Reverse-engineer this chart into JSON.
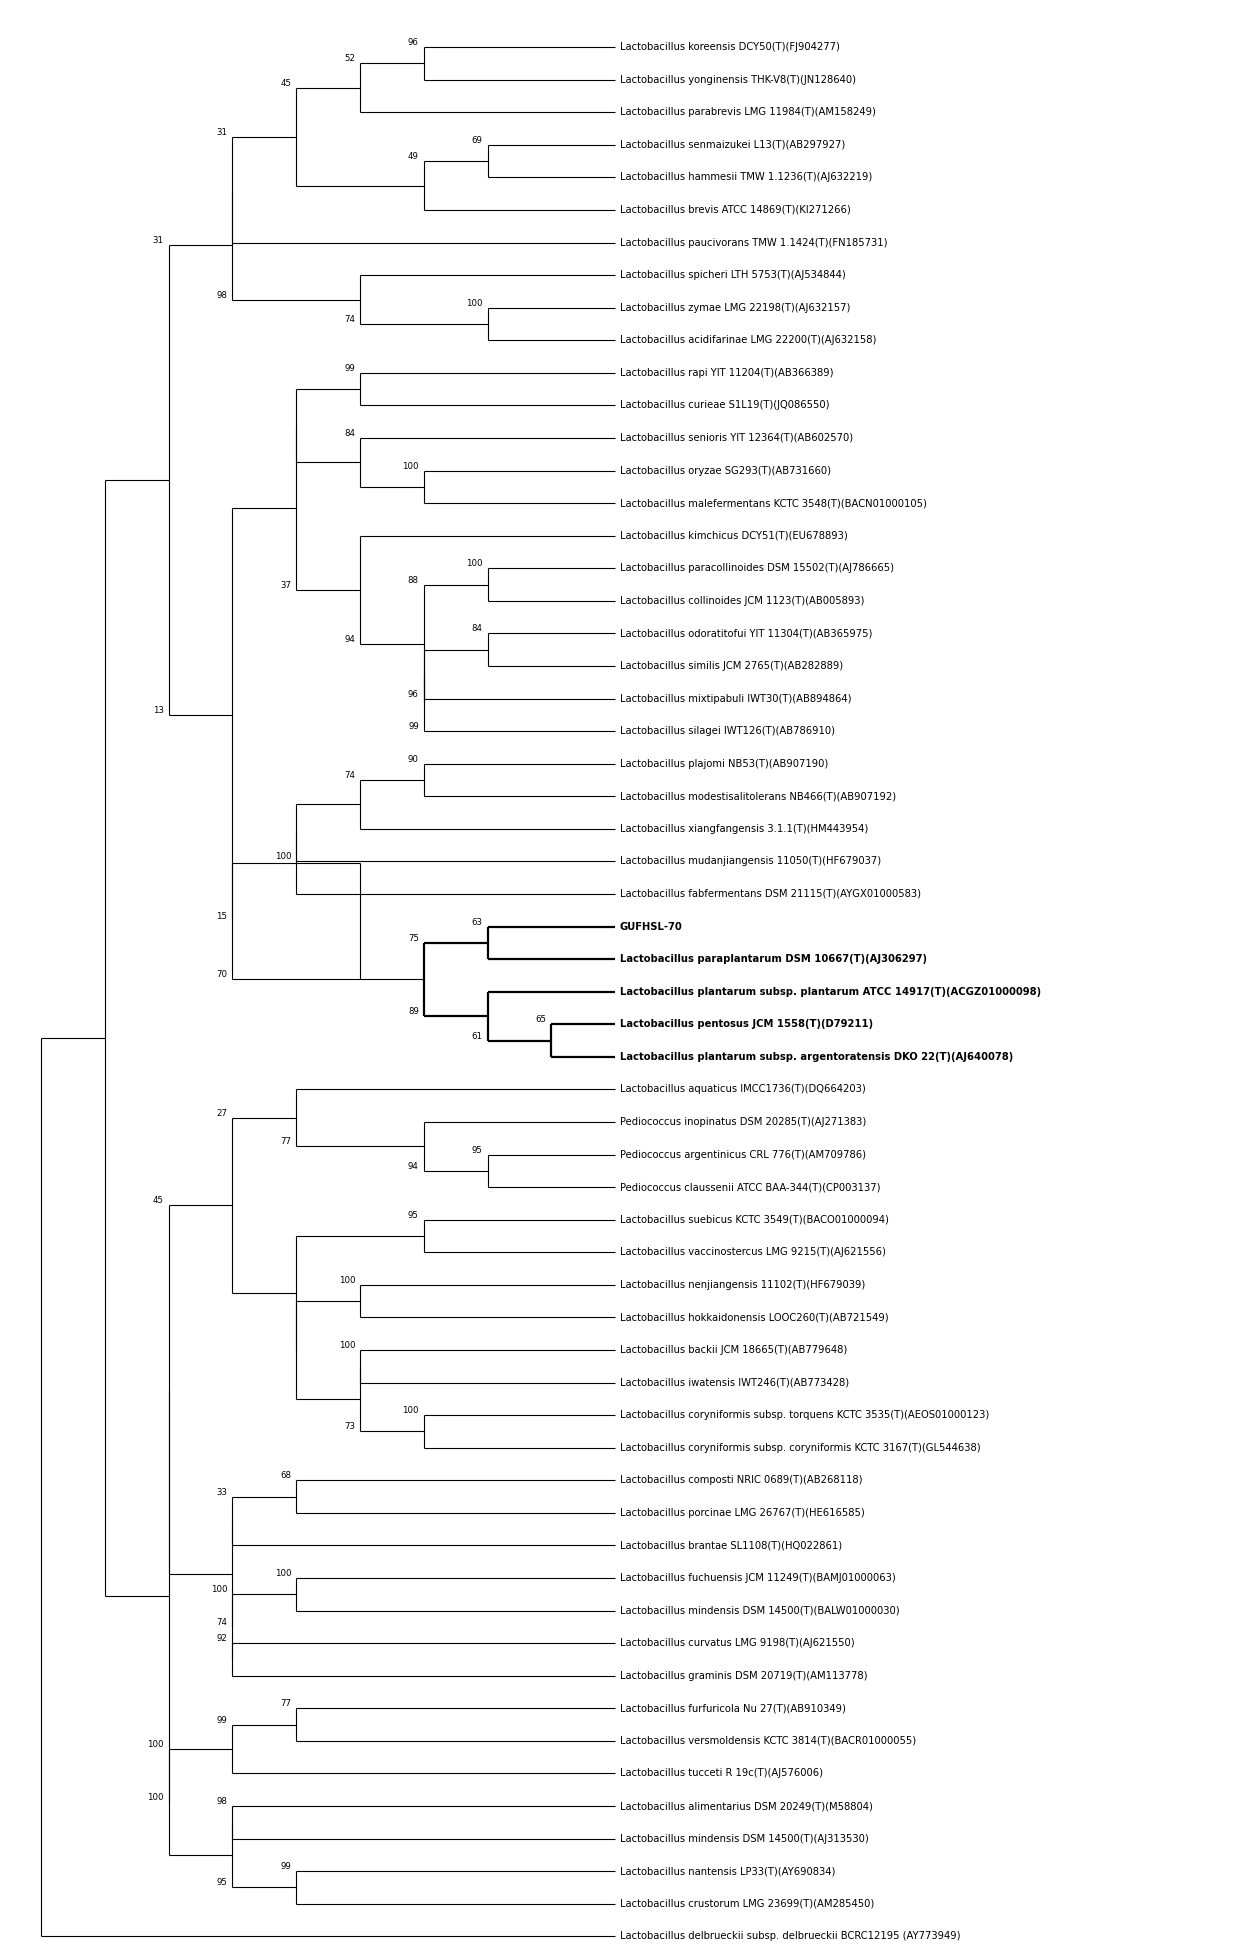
{
  "taxa": [
    "Lactobacillus koreensis DCY50(T)(FJ904277)",
    "Lactobacillus yonginensis THK-V8(T)(JN128640)",
    "Lactobacillus parabrevis LMG 11984(T)(AM158249)",
    "Lactobacillus senmaizukei L13(T)(AB297927)",
    "Lactobacillus hammesii TMW 1.1236(T)(AJ632219)",
    "Lactobacillus brevis ATCC 14869(T)(KI271266)",
    "Lactobacillus paucivorans TMW 1.1424(T)(FN185731)",
    "Lactobacillus spicheri LTH 5753(T)(AJ534844)",
    "Lactobacillus zymae LMG 22198(T)(AJ632157)",
    "Lactobacillus acidifarinae LMG 22200(T)(AJ632158)",
    "Lactobacillus rapi YIT 11204(T)(AB366389)",
    "Lactobacillus curieae S1L19(T)(JQ086550)",
    "Lactobacillus senioris YIT 12364(T)(AB602570)",
    "Lactobacillus oryzae SG293(T)(AB731660)",
    "Lactobacillus malefermentans KCTC 3548(T)(BACN01000105)",
    "Lactobacillus kimchicus DCY51(T)(EU678893)",
    "Lactobacillus paracollinoides DSM 15502(T)(AJ786665)",
    "Lactobacillus collinoides JCM 1123(T)(AB005893)",
    "Lactobacillus odoratitofui YIT 11304(T)(AB365975)",
    "Lactobacillus similis JCM 2765(T)(AB282889)",
    "Lactobacillus mixtipabuli IWT30(T)(AB894864)",
    "Lactobacillus silagei IWT126(T)(AB786910)",
    "Lactobacillus plajomi NB53(T)(AB907190)",
    "Lactobacillus modestisalitolerans NB466(T)(AB907192)",
    "Lactobacillus xiangfangensis 3.1.1(T)(HM443954)",
    "Lactobacillus mudanjiangensis 11050(T)(HF679037)",
    "Lactobacillus fabfermentans DSM 21115(T)(AYGX01000583)",
    "GUFHSL-70",
    "Lactobacillus paraplantarum DSM 10667(T)(AJ306297)",
    "Lactobacillus plantarum subsp. plantarum ATCC 14917(T)(ACGZ01000098)",
    "Lactobacillus pentosus JCM 1558(T)(D79211)",
    "Lactobacillus plantarum subsp. argentoratensis DKO 22(T)(AJ640078)",
    "Lactobacillus aquaticus IMCC1736(T)(DQ664203)",
    "Pediococcus inopinatus DSM 20285(T)(AJ271383)",
    "Pediococcus argentinicus CRL 776(T)(AM709786)",
    "Pediococcus claussenii ATCC BAA-344(T)(CP003137)",
    "Lactobacillus suebicus KCTC 3549(T)(BACO01000094)",
    "Lactobacillus vaccinostercus LMG 9215(T)(AJ621556)",
    "Lactobacillus nenjiangensis 11102(T)(HF679039)",
    "Lactobacillus hokkaidonensis LOOC260(T)(AB721549)",
    "Lactobacillus backii JCM 18665(T)(AB779648)",
    "Lactobacillus iwatensis IWT246(T)(AB773428)",
    "Lactobacillus coryniformis subsp. torquens KCTC 3535(T)(AEOS01000123)",
    "Lactobacillus coryniformis subsp. coryniformis KCTC 3167(T)(GL544638)",
    "Lactobacillus composti NRIC 0689(T)(AB268118)",
    "Lactobacillus porcinae LMG 26767(T)(HE616585)",
    "Lactobacillus brantae SL1108(T)(HQ022861)",
    "Lactobacillus fuchuensis JCM 11249(T)(BAMJ01000063)",
    "Lactobacillus mindensis DSM 14500(T)(BALW01000030)",
    "Lactobacillus curvatus LMG 9198(T)(AJ621550)",
    "Lactobacillus graminis DSM 20719(T)(AM113778)",
    "Lactobacillus furfuricola Nu 27(T)(AB910349)",
    "Lactobacillus versmoldensis KCTC 3814(T)(BACR01000055)",
    "Lactobacillus tucceti R 19c(T)(AJ576006)",
    "Lactobacillus alimentarius DSM 20249(T)(M58804)",
    "Lactobacillus mindensis DSM 14500(T)(AJ313530)",
    "Lactobacillus nantensis LP33(T)(AY690834)",
    "Lactobacillus crustorum LMG 23699(T)(AM285450)",
    "Lactobacillus delbrueckii subsp. delbrueckii BCRC12195 (AY773949)"
  ],
  "bold_indices": [
    27,
    28,
    29,
    30,
    31
  ],
  "background": "#ffffff",
  "line_color": "#000000",
  "text_color": "#000000",
  "font_size": 7.2,
  "bs_font_size": 6.2,
  "lw": 0.8,
  "lw_bold": 1.6
}
